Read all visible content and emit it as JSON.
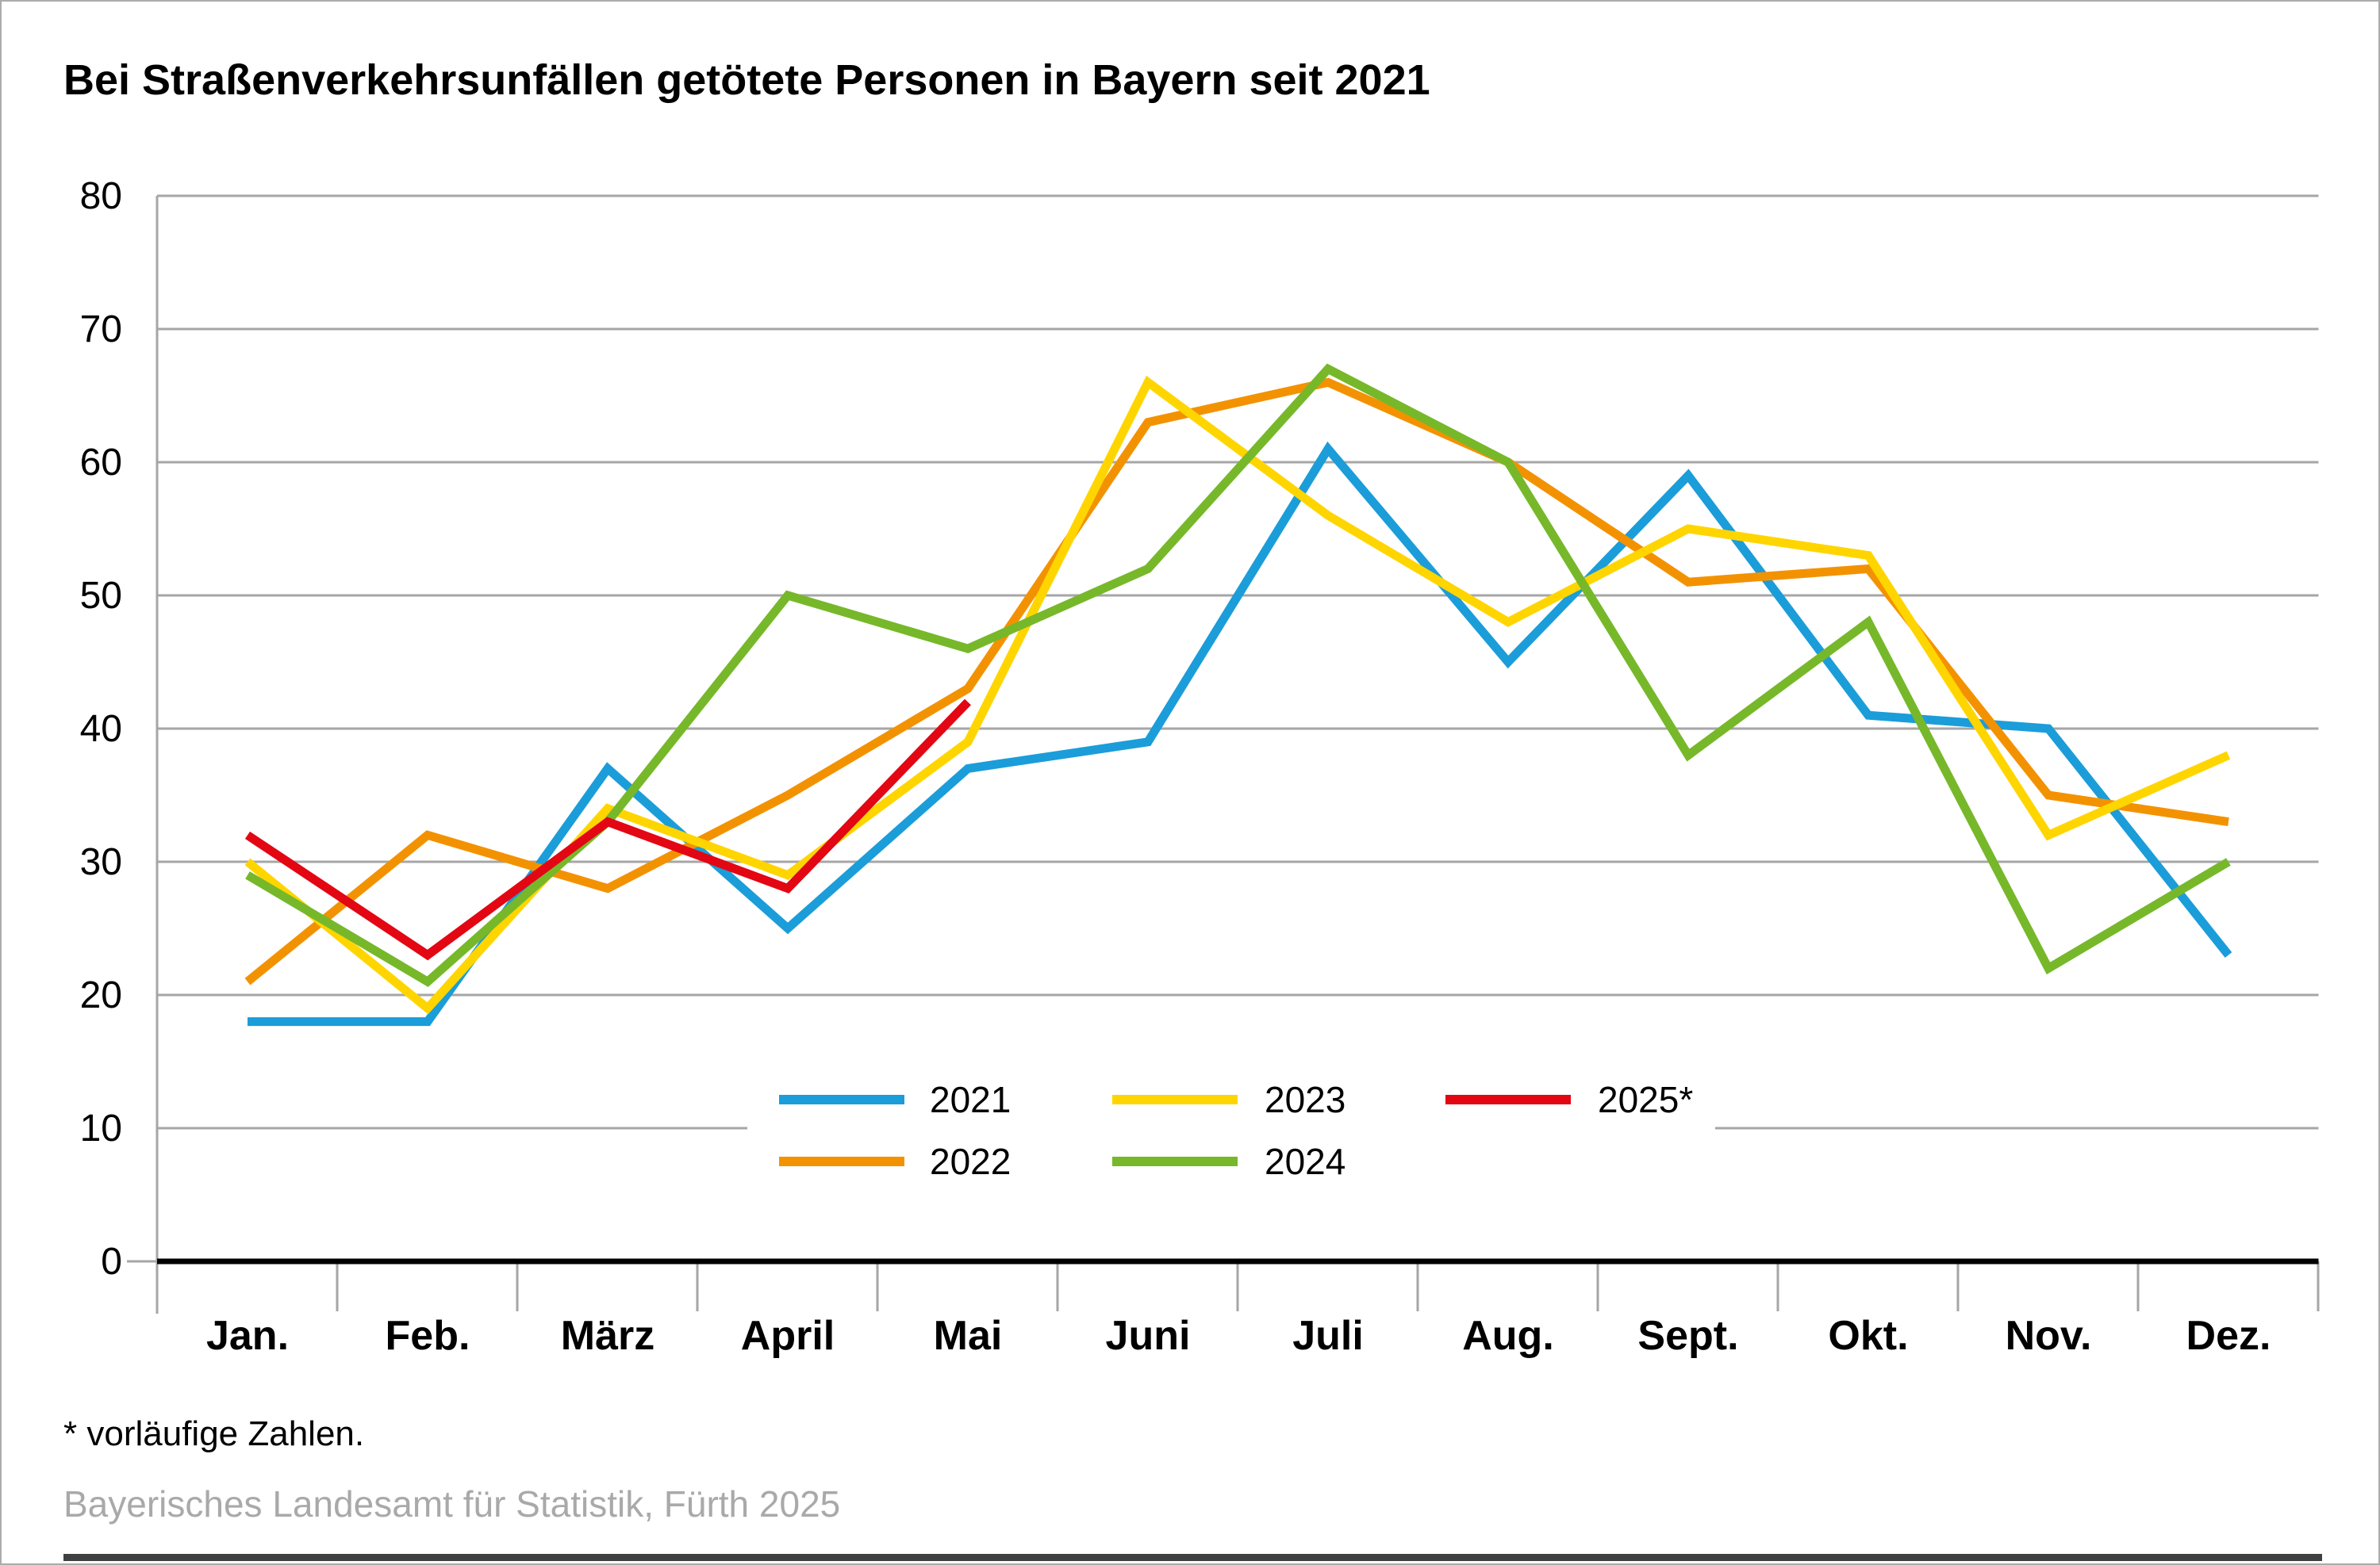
{
  "title": "Bei Straßenverkehrsunfällen getötete Personen in Bayern seit 2021",
  "footnote": "* vorläufige Zahlen.",
  "source": "Bayerisches Landesamt für Statistik, Fürth 2025",
  "colors": {
    "grid": "#a6a6a6",
    "axis": "#000000",
    "tick_label": "#000000",
    "source_text": "#a9a9a9",
    "legend_background": "#ffffff"
  },
  "chart_data": {
    "type": "line",
    "title": "Bei Straßenverkehrsunfällen getötete Personen in Bayern seit 2021",
    "xlabel": "",
    "ylabel": "",
    "ylim": [
      0,
      80
    ],
    "yticks": [
      0,
      10,
      20,
      30,
      40,
      50,
      60,
      70,
      80
    ],
    "grid": true,
    "legend_position": "inside-bottom-center",
    "categories": [
      "Jan.",
      "Feb.",
      "März",
      "April",
      "Mai",
      "Juni",
      "Juli",
      "Aug.",
      "Sept.",
      "Okt.",
      "Nov.",
      "Dez."
    ],
    "series": [
      {
        "name": "2021",
        "color": "#1b9dd9",
        "values": [
          18,
          18,
          37,
          25,
          37,
          39,
          61,
          45,
          59,
          41,
          40,
          23
        ]
      },
      {
        "name": "2022",
        "color": "#f39200",
        "values": [
          21,
          32,
          28,
          35,
          43,
          63,
          66,
          60,
          51,
          52,
          35,
          33
        ]
      },
      {
        "name": "2023",
        "color": "#ffd500",
        "values": [
          30,
          19,
          34,
          29,
          39,
          66,
          56,
          48,
          55,
          53,
          32,
          38
        ]
      },
      {
        "name": "2024",
        "color": "#76b82a",
        "values": [
          29,
          21,
          33,
          50,
          46,
          52,
          67,
          60,
          38,
          48,
          22,
          30
        ]
      },
      {
        "name": "2025*",
        "color": "#e30613",
        "values": [
          32,
          23,
          33,
          28,
          42
        ]
      }
    ]
  }
}
